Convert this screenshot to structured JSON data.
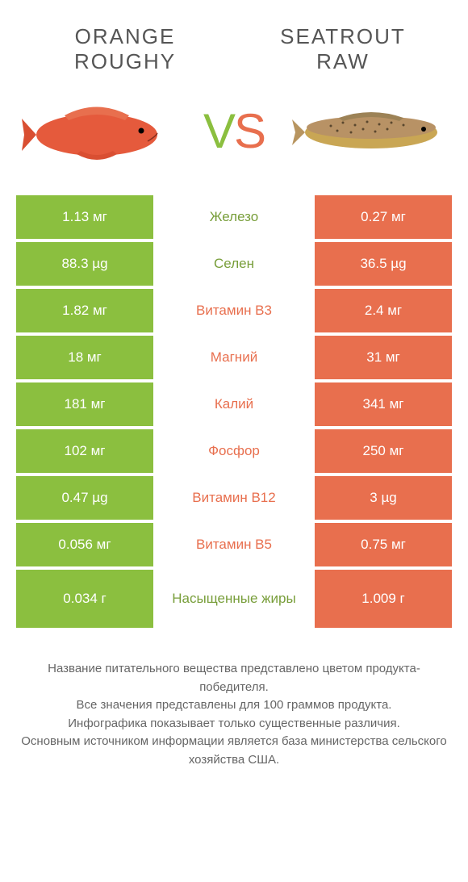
{
  "colors": {
    "green": "#8bbf3f",
    "orange": "#e86f4e",
    "green_text": "#789e3a",
    "orange_text": "#e86f4e",
    "gray_text": "#888888",
    "body_text": "#555555",
    "bg": "#ffffff"
  },
  "header": {
    "left_title": "ORANGE ROUGHY",
    "right_title": "SEATROUT RAW"
  },
  "vs": {
    "v": "V",
    "s": "S"
  },
  "rows": [
    {
      "left": "1.13 мг",
      "mid": "Железо",
      "right": "0.27 мг",
      "winner": "left"
    },
    {
      "left": "88.3 µg",
      "mid": "Селен",
      "right": "36.5 µg",
      "winner": "left"
    },
    {
      "left": "1.82 мг",
      "mid": "Витамин B3",
      "right": "2.4 мг",
      "winner": "right"
    },
    {
      "left": "18 мг",
      "mid": "Магний",
      "right": "31 мг",
      "winner": "right"
    },
    {
      "left": "181 мг",
      "mid": "Калий",
      "right": "341 мг",
      "winner": "right"
    },
    {
      "left": "102 мг",
      "mid": "Фосфор",
      "right": "250 мг",
      "winner": "right"
    },
    {
      "left": "0.47 µg",
      "mid": "Витамин B12",
      "right": "3 µg",
      "winner": "right"
    },
    {
      "left": "0.056 мг",
      "mid": "Витамин B5",
      "right": "0.75 мг",
      "winner": "right"
    },
    {
      "left": "0.034 г",
      "mid": "Насыщенные жиры",
      "right": "1.009 г",
      "winner": "left",
      "tall": true
    }
  ],
  "footer": {
    "l1": "Название питательного вещества представлено цветом продукта-победителя.",
    "l2": "Все значения представлены для 100 граммов продукта.",
    "l3": "Инфографика показывает только существенные различия.",
    "l4": "Основным источником информации является база министерства сельского хозяйства США."
  }
}
